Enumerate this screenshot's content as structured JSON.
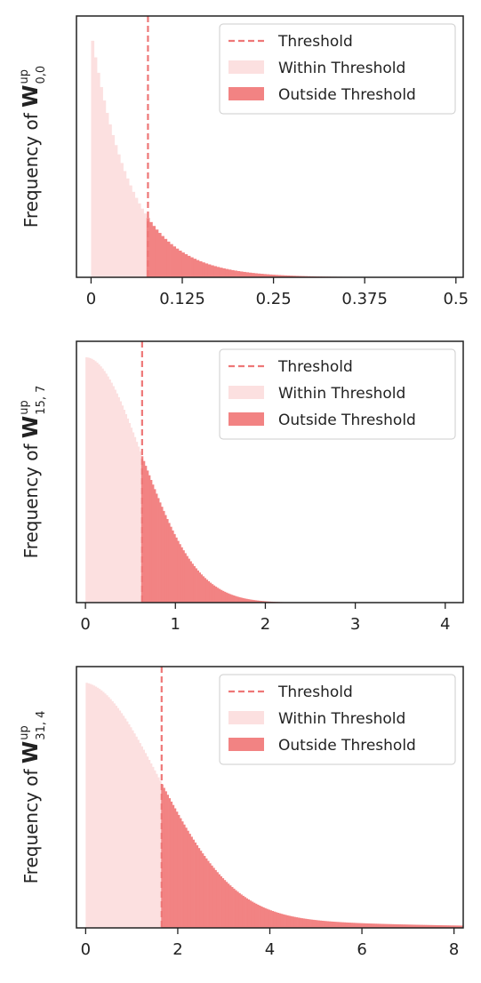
{
  "colors": {
    "within": "#fce0e0",
    "outside": "#f28383",
    "threshold": "#ee7777",
    "axis": "#222222"
  },
  "chart_data": [
    {
      "type": "histogram",
      "ylabel": {
        "prefix": "Frequency of ",
        "symbol": "W",
        "sub": "0,0",
        "sup": "up"
      },
      "xlim": [
        -0.02,
        0.51
      ],
      "xticks": [
        0,
        0.125,
        0.25,
        0.375,
        0.5
      ],
      "xtick_labels": [
        "0",
        "0.125",
        "0.25",
        "0.375",
        "0.5"
      ],
      "threshold": 0.078,
      "distribution": "exponential",
      "scale": 0.055,
      "bin_width": 0.004,
      "legend": {
        "position": "top-right",
        "entries": [
          "Threshold",
          "Within Threshold",
          "Outside Threshold"
        ]
      }
    },
    {
      "type": "histogram",
      "ylabel": {
        "prefix": "Frequency of ",
        "symbol": "W",
        "sub": "15, 7",
        "sup": "up"
      },
      "xlim": [
        -0.1,
        4.2
      ],
      "xticks": [
        0,
        1,
        2,
        3,
        4
      ],
      "xtick_labels": [
        "0",
        "1",
        "2",
        "3",
        "4"
      ],
      "threshold": 0.63,
      "distribution": "half-normal",
      "scale": 0.62,
      "bin_width": 0.02,
      "legend": {
        "position": "top-right",
        "entries": [
          "Threshold",
          "Within Threshold",
          "Outside Threshold"
        ]
      }
    },
    {
      "type": "histogram",
      "ylabel": {
        "prefix": "Frequency of ",
        "symbol": "W",
        "sub": "31, 4",
        "sup": "up"
      },
      "xlim": [
        -0.2,
        8.2
      ],
      "xticks": [
        0,
        2,
        4,
        6,
        8
      ],
      "xtick_labels": [
        "0",
        "2",
        "4",
        "6",
        "8"
      ],
      "threshold": 1.65,
      "distribution": "half-normal-heavy-tail",
      "scale": 1.6,
      "bin_width": 0.04,
      "legend": {
        "position": "top-right",
        "entries": [
          "Threshold",
          "Within Threshold",
          "Outside Threshold"
        ]
      }
    }
  ]
}
